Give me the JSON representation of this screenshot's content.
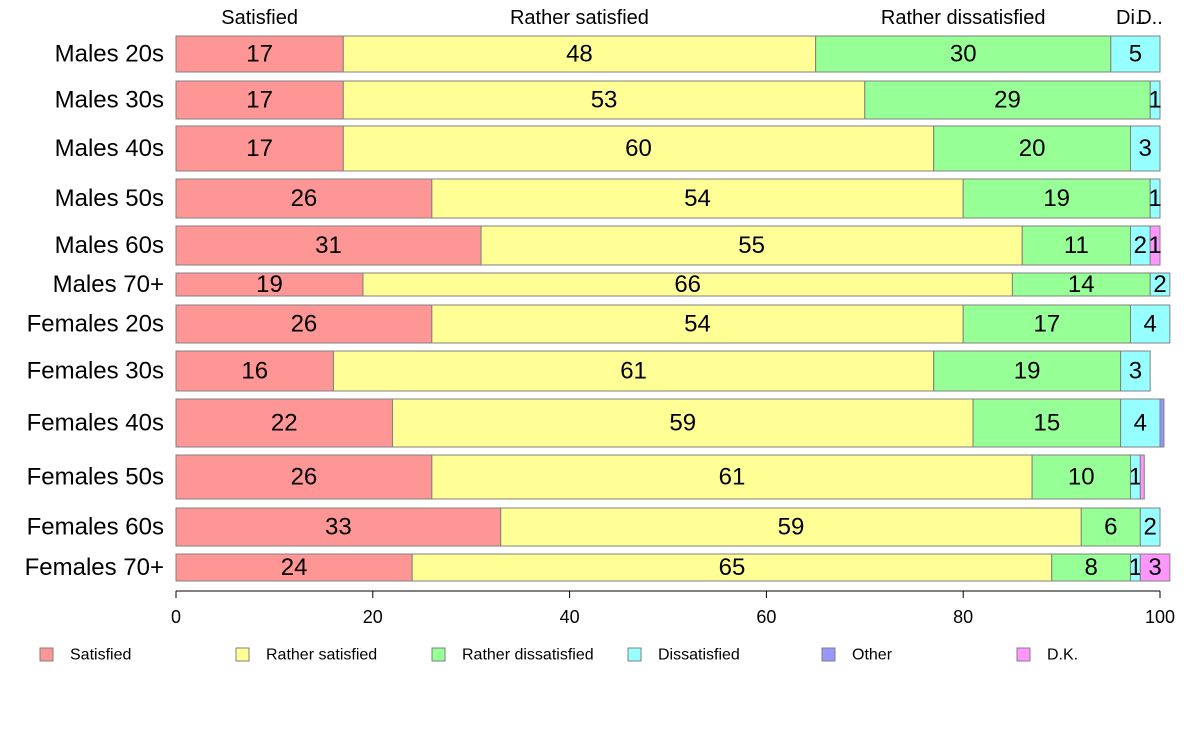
{
  "chart_data": {
    "type": "bar",
    "orientation": "horizontal",
    "stacked": true,
    "xlim": [
      0,
      100
    ],
    "x_ticks": [
      0,
      20,
      40,
      60,
      80,
      100
    ],
    "categories": [
      "Males 20s",
      "Males 30s",
      "Males 40s",
      "Males 50s",
      "Males 60s",
      "Males 70+",
      "Females 20s",
      "Females 30s",
      "Females 40s",
      "Females 50s",
      "Females 60s",
      "Females 70+"
    ],
    "series": [
      {
        "name": "Satisfied",
        "color": "#FF9696",
        "values": [
          17,
          17,
          17,
          26,
          31,
          19,
          26,
          16,
          22,
          26,
          33,
          24
        ],
        "labels": [
          "17",
          "17",
          "17",
          "26",
          "31",
          "19",
          "26",
          "16",
          "22",
          "26",
          "33",
          "24"
        ]
      },
      {
        "name": "Rather satisfied",
        "color": "#FFFF96",
        "values": [
          48,
          53,
          60,
          54,
          55,
          66,
          54,
          61,
          59,
          61,
          59,
          65
        ],
        "labels": [
          "48",
          "53",
          "60",
          "54",
          "55",
          "66",
          "54",
          "61",
          "59",
          "61",
          "59",
          "65"
        ]
      },
      {
        "name": "Rather dissatisfied",
        "color": "#96FF96",
        "values": [
          30,
          29,
          20,
          19,
          11,
          14,
          17,
          19,
          15,
          10,
          6,
          8
        ],
        "labels": [
          "30",
          "29",
          "20",
          "19",
          "11",
          "14",
          "17",
          "19",
          "15",
          "10",
          "6",
          "8"
        ]
      },
      {
        "name": "Dissatisfied",
        "color": "#96FFFF",
        "values": [
          5,
          1,
          3,
          1,
          2,
          2,
          4,
          3,
          4,
          1,
          2,
          1
        ],
        "labels": [
          "5",
          "1",
          "3",
          "1",
          "2",
          "2",
          "4",
          "3",
          "4",
          "1",
          "2",
          "1"
        ]
      },
      {
        "name": "Other",
        "color": "#9696FF",
        "values": [
          0,
          0,
          0,
          0,
          0,
          0,
          0,
          0,
          0.4,
          0,
          0,
          0
        ],
        "labels": [
          "",
          "",
          "",
          "",
          "",
          "",
          "",
          "",
          "",
          "",
          "",
          ""
        ]
      },
      {
        "name": "D.K.",
        "color": "#FF96FF",
        "values": [
          0,
          0,
          0,
          0,
          1,
          0,
          0,
          0,
          0,
          0.4,
          0,
          3
        ],
        "labels": [
          "",
          "",
          "",
          "",
          "1",
          "",
          "",
          "",
          "",
          "",
          "",
          "3"
        ]
      }
    ],
    "top_labels": [
      "Satisfied",
      "Rather satisfied",
      "Rather dissatisfied",
      "Di..",
      "D.."
    ],
    "legend_position": "bottom",
    "grid": false
  }
}
